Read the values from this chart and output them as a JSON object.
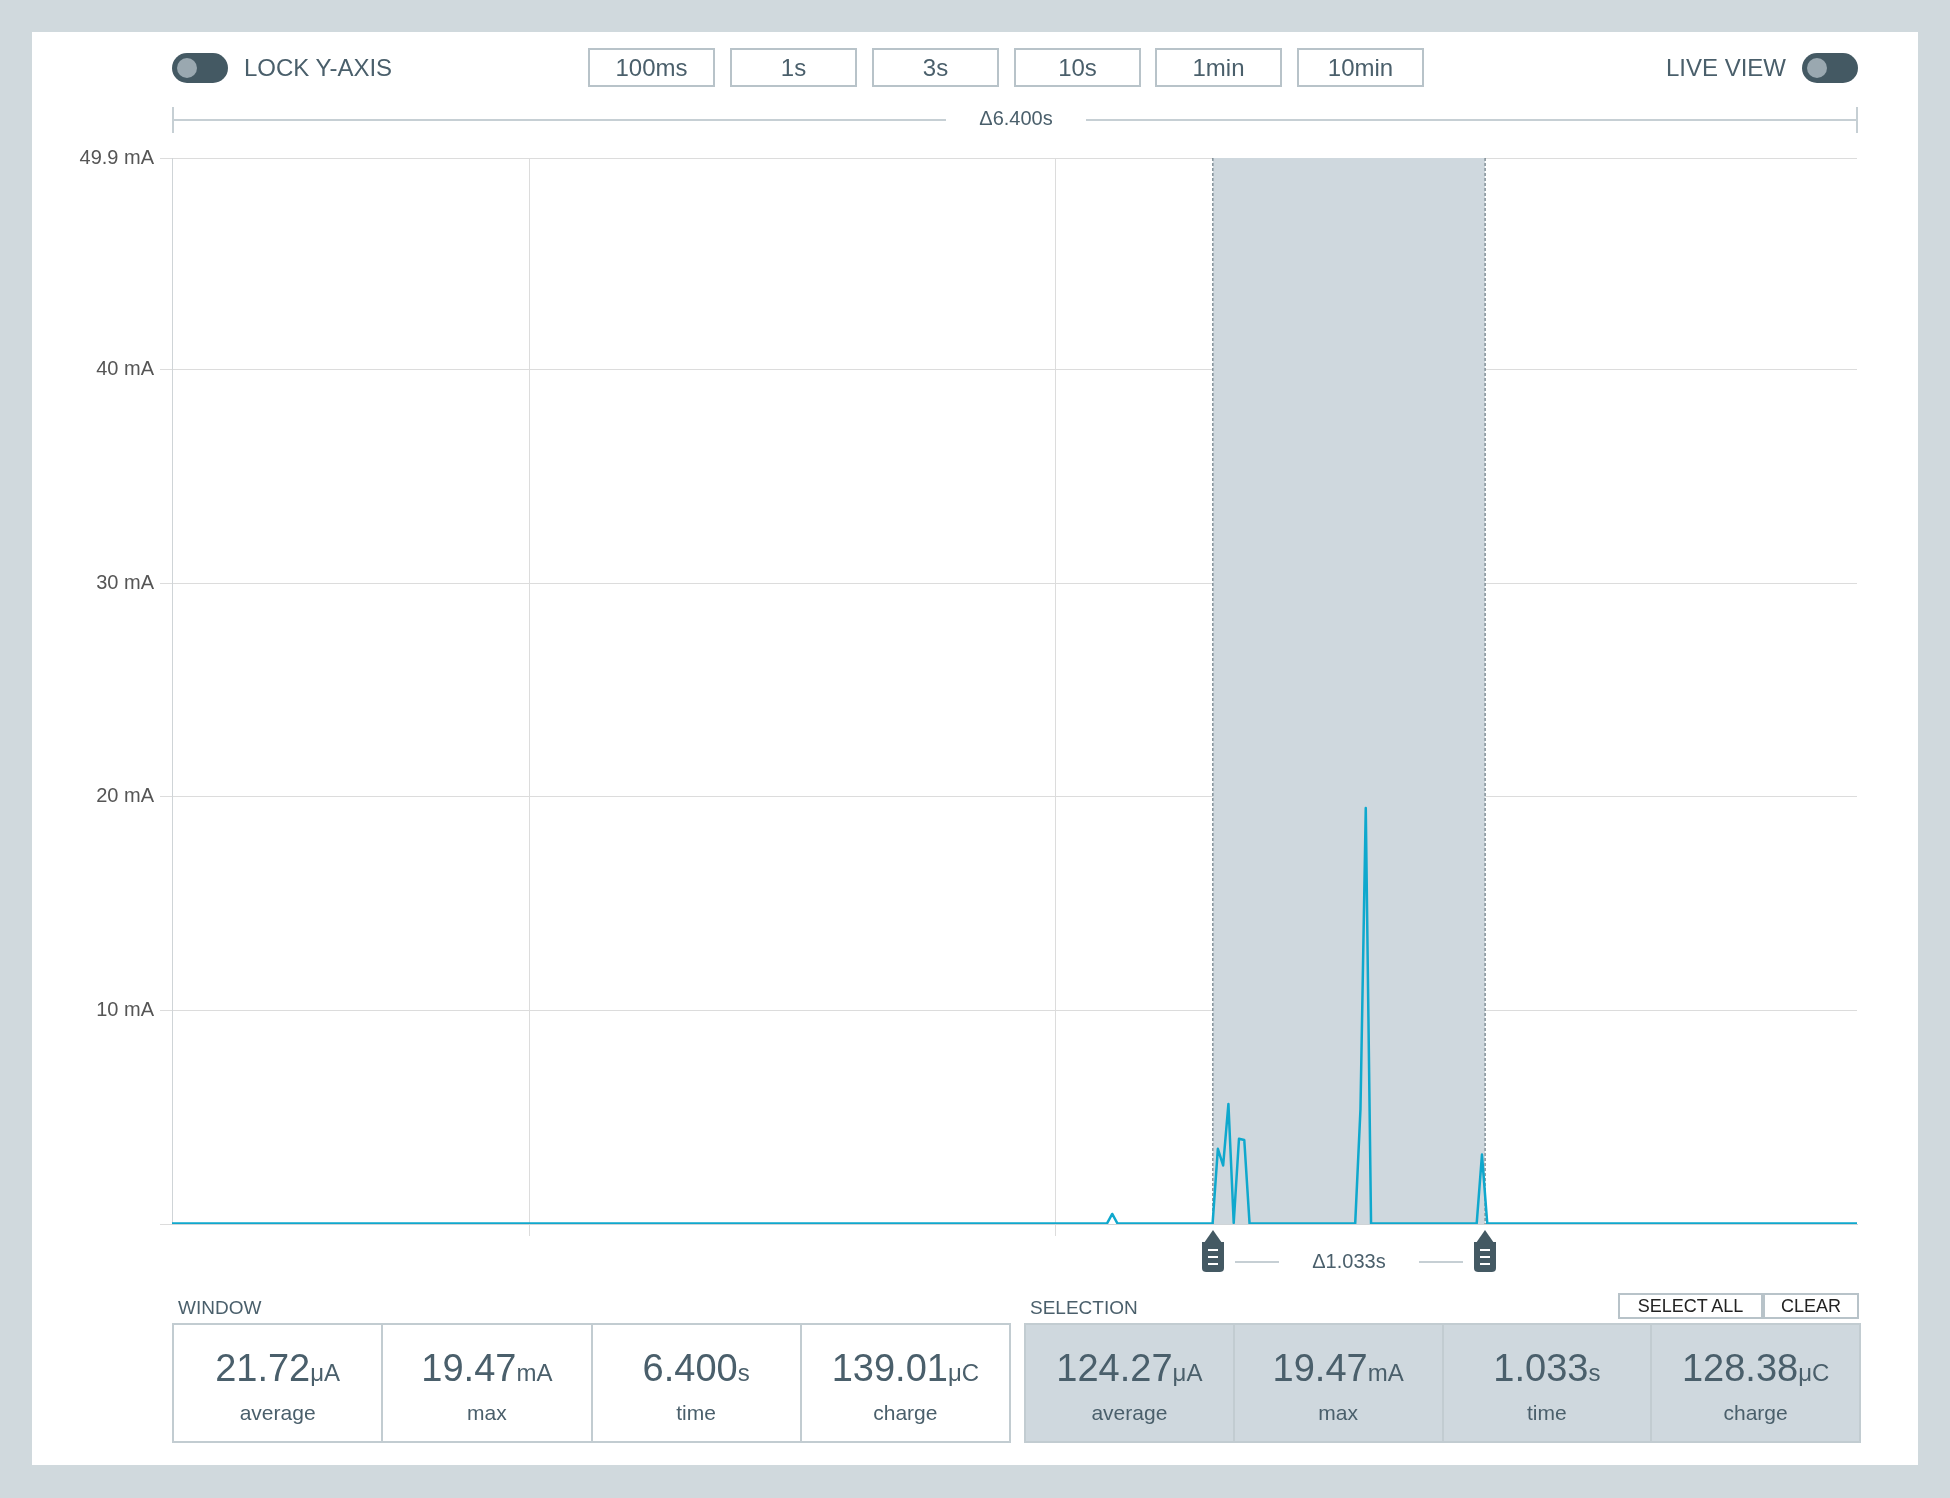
{
  "chart_data": {
    "type": "line",
    "categories": [
      null,
      null,
      null,
      null,
      null,
      null,
      null,
      null,
      null,
      null,
      null,
      null,
      null,
      null,
      null,
      null,
      null,
      null,
      null,
      null,
      null,
      null,
      null,
      null,
      null,
      null,
      null,
      null,
      null,
      null,
      null,
      null,
      null,
      null,
      null,
      null,
      null,
      null,
      null,
      null,
      null,
      null,
      null,
      null,
      null,
      null,
      null,
      null,
      null,
      null,
      null,
      null,
      null,
      null,
      null,
      null,
      null,
      null,
      null,
      null,
      null,
      null,
      null,
      null,
      null,
      null,
      null,
      null,
      null,
      null,
      null,
      null,
      null,
      null,
      null,
      null,
      null,
      null,
      null,
      null,
      null,
      null,
      null,
      null,
      null,
      null,
      null,
      null,
      null,
      null,
      null,
      null,
      null,
      null,
      null,
      null,
      null,
      null,
      null,
      null,
      null,
      null,
      null,
      null,
      null,
      null,
      null,
      null,
      null,
      null,
      null,
      null,
      null,
      null,
      null,
      null,
      null,
      null,
      null,
      null,
      null,
      null,
      null,
      null,
      null,
      null,
      null,
      null,
      null,
      null,
      null,
      null,
      null,
      null,
      null,
      null,
      null,
      null,
      null,
      null,
      null,
      null,
      null,
      null,
      null,
      null,
      null,
      null,
      null,
      null,
      null,
      null,
      null,
      null,
      null,
      null,
      null,
      null,
      null,
      null,
      null,
      null,
      null,
      null,
      null,
      null,
      null,
      null,
      null,
      null,
      null,
      null,
      null,
      null,
      null,
      null,
      null,
      null,
      null,
      null,
      null,
      null,
      null,
      null,
      null,
      null,
      null,
      null,
      null,
      null,
      null,
      null,
      null,
      null,
      null,
      null,
      null,
      null,
      null,
      null,
      null,
      null,
      null,
      null,
      null,
      null,
      null,
      null,
      null,
      null,
      null,
      null,
      null,
      null,
      null,
      null,
      null,
      null,
      null,
      null,
      null,
      null,
      null,
      null,
      null,
      null,
      null,
      null,
      null,
      null,
      null,
      null,
      null,
      null,
      null,
      null,
      null,
      null,
      null,
      null,
      null,
      null,
      null,
      null,
      null,
      null,
      null,
      null,
      null,
      null,
      null,
      null,
      null,
      null,
      null,
      null,
      null,
      null,
      null,
      null,
      null,
      null,
      null,
      null,
      null,
      null,
      null,
      null,
      null,
      null,
      null,
      null,
      null,
      null,
      null,
      null,
      null,
      null,
      null,
      null,
      null,
      null,
      null,
      null,
      null,
      null,
      null,
      null,
      null,
      null,
      null,
      null,
      null,
      null,
      null,
      null,
      null,
      null,
      null,
      null,
      null,
      null,
      null,
      null,
      null,
      null,
      null,
      null,
      null,
      null,
      null,
      null,
      null,
      null,
      null,
      null,
      null,
      null,
      null,
      null
    ],
    "ylim": [
      0,
      49.9
    ],
    "yticks": [
      {
        "value": 0,
        "label": null
      },
      {
        "value": 10,
        "label": "10 mA"
      },
      {
        "value": 20,
        "label": "20 mA"
      },
      {
        "value": 30,
        "label": "30 mA"
      },
      {
        "value": 40,
        "label": "40 mA"
      },
      {
        "value": 49.9,
        "label": "49.9 mA"
      }
    ],
    "tick_labels": "y",
    "grid": "y",
    "legend": false,
    "marker": "none",
    "line_style": "solid",
    "series": [
      {
        "color": "#0fa8cd",
        "values": [
          0.02,
          0.02,
          0.02,
          0.02,
          0.02,
          0.02,
          0.02,
          0.02,
          0.02,
          0.02,
          0.02,
          0.02,
          0.02,
          0.02,
          0.02,
          0.02,
          0.02,
          0.02,
          0.02,
          0.02,
          0.02,
          0.02,
          0.02,
          0.02,
          0.02,
          0.02,
          0.02,
          0.02,
          0.02,
          0.02,
          0.02,
          0.02,
          0.02,
          0.02,
          0.02,
          0.02,
          0.02,
          0.02,
          0.02,
          0.02,
          0.02,
          0.02,
          0.02,
          0.02,
          0.02,
          0.02,
          0.02,
          0.02,
          0.02,
          0.02,
          0.02,
          0.02,
          0.02,
          0.02,
          0.02,
          0.02,
          0.02,
          0.02,
          0.02,
          0.02,
          0.02,
          0.02,
          0.02,
          0.02,
          0.02,
          0.02,
          0.02,
          0.02,
          0.02,
          0.02,
          0.02,
          0.02,
          0.02,
          0.02,
          0.02,
          0.02,
          0.02,
          0.02,
          0.02,
          0.02,
          0.02,
          0.02,
          0.02,
          0.02,
          0.02,
          0.02,
          0.02,
          0.02,
          0.02,
          0.02,
          0.02,
          0.02,
          0.02,
          0.02,
          0.02,
          0.02,
          0.02,
          0.02,
          0.02,
          0.02,
          0.02,
          0.02,
          0.02,
          0.02,
          0.02,
          0.02,
          0.02,
          0.02,
          0.02,
          0.02,
          0.02,
          0.02,
          0.02,
          0.02,
          0.02,
          0.02,
          0.02,
          0.02,
          0.02,
          0.02,
          0.02,
          0.02,
          0.02,
          0.02,
          0.02,
          0.02,
          0.02,
          0.02,
          0.02,
          0.02,
          0.02,
          0.02,
          0.02,
          0.02,
          0.02,
          0.02,
          0.02,
          0.02,
          0.02,
          0.02,
          0.02,
          0.02,
          0.02,
          0.02,
          0.02,
          0.02,
          0.02,
          0.02,
          0.02,
          0.02,
          0.02,
          0.02,
          0.02,
          0.02,
          0.02,
          0.02,
          0.02,
          0.02,
          0.02,
          0.02,
          0.02,
          0.02,
          0.02,
          0.02,
          0.02,
          0.02,
          0.02,
          0.02,
          0.02,
          0.02,
          0.02,
          0.02,
          0.02,
          0.02,
          0.02,
          0.02,
          0.02,
          0.02,
          0.47,
          0.02,
          0.02,
          0.02,
          0.02,
          0.02,
          0.02,
          0.02,
          0.02,
          0.02,
          0.02,
          0.02,
          0.02,
          0.02,
          0.02,
          0.02,
          0.02,
          0.02,
          0.02,
          0.02,
          3.52,
          2.74,
          5.62,
          0.05,
          3.99,
          3.93,
          0.02,
          0.02,
          0.02,
          0.02,
          0.02,
          0.02,
          0.02,
          0.02,
          0.02,
          0.02,
          0.02,
          0.02,
          0.02,
          0.02,
          0.02,
          0.02,
          0.02,
          0.02,
          0.02,
          0.02,
          0.02,
          5.39,
          19.47,
          0.02,
          0.02,
          0.02,
          0.02,
          0.02,
          0.02,
          0.02,
          0.02,
          0.02,
          0.02,
          0.02,
          0.02,
          0.02,
          0.02,
          0.02,
          0.02,
          0.02,
          0.02,
          0.02,
          0.02,
          0.02,
          3.25,
          0.02,
          0.02,
          0.02,
          0.02,
          0.02,
          0.02,
          0.02,
          0.02,
          0.02,
          0.02,
          0.02,
          0.02,
          0.02,
          0.02,
          0.02,
          0.02,
          0.02,
          0.02,
          0.02,
          0.02,
          0.02,
          0.02,
          0.02,
          0.02,
          0.02,
          0.02,
          0.02,
          0.02,
          0.02,
          0.02,
          0.02,
          0.02,
          0.02,
          0.02,
          0.02,
          0.02,
          0.02,
          0.02,
          0.02,
          0.02,
          0.02,
          0.02,
          0.02,
          0.02,
          0.02,
          0.02,
          0.02,
          0.02,
          0.02,
          0.02,
          0.02,
          0.02,
          0.02,
          0.02,
          0.02,
          0.02,
          0.02,
          0.02,
          0.02,
          0.02,
          0.02,
          0.02,
          0.02,
          0.02,
          0.02,
          0.02,
          0.02,
          0.02,
          0.02,
          0.02,
          0.02
        ]
      }
    ],
    "annotations": [
      "LOCK Y-AXIS",
      "LIVE VIEW",
      "100ms",
      "1s",
      "3s",
      "10s",
      "1min",
      "10min",
      "Δ6.400s",
      "WINDOW",
      "21.72μA",
      "average",
      "19.47mA",
      "max",
      "6.400s",
      "time",
      "139.01μC",
      "charge",
      "SELECTION",
      "SELECT ALL",
      "CLEAR",
      "124.27μA",
      "average",
      "19.47mA",
      "max",
      "1.033s",
      "time",
      "128.38μC",
      "charge",
      "Δ1.033s"
    ]
  }
}
